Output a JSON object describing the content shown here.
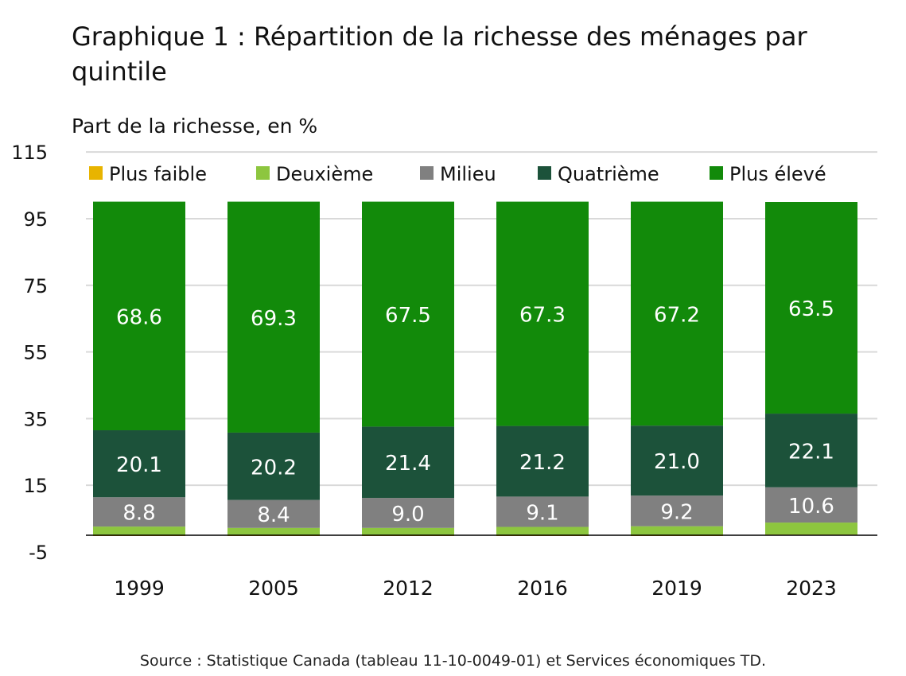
{
  "title": "Graphique 1 : Répartition de la richesse des ménages par quintile",
  "source": "Source : Statistique Canada (tableau 11-10-0049-01) et Services économiques TD.",
  "chart_data": {
    "type": "bar",
    "stacked": true,
    "title": "Graphique 1 : Répartition de la richesse des ménages par quintile",
    "ylabel": "Part de la richesse, en %",
    "xlabel": "",
    "ylim": [
      -5,
      115
    ],
    "yticks": [
      115,
      95,
      75,
      55,
      35,
      15,
      -5
    ],
    "grid": true,
    "legend": "top",
    "categories": [
      "1999",
      "2005",
      "2012",
      "2016",
      "2019",
      "2023"
    ],
    "series": [
      {
        "name": "Plus faible",
        "color": "#e8b400",
        "values": [
          -0.1,
          -0.1,
          -0.1,
          -0.1,
          -0.1,
          0.2
        ],
        "labels": false
      },
      {
        "name": "Deuxième",
        "color": "#8dc63f",
        "values": [
          2.6,
          2.2,
          2.2,
          2.5,
          2.7,
          3.6
        ],
        "labels": false
      },
      {
        "name": "Milieu",
        "color": "#808080",
        "values": [
          8.8,
          8.4,
          9.0,
          9.1,
          9.2,
          10.6
        ],
        "labels": true
      },
      {
        "name": "Quatrième",
        "color": "#1c523a",
        "values": [
          20.1,
          20.2,
          21.4,
          21.2,
          21.0,
          22.1
        ],
        "labels": true
      },
      {
        "name": "Plus élevé",
        "color": "#128a0a",
        "values": [
          68.6,
          69.3,
          67.5,
          67.3,
          67.2,
          63.5
        ],
        "labels": true
      }
    ]
  }
}
